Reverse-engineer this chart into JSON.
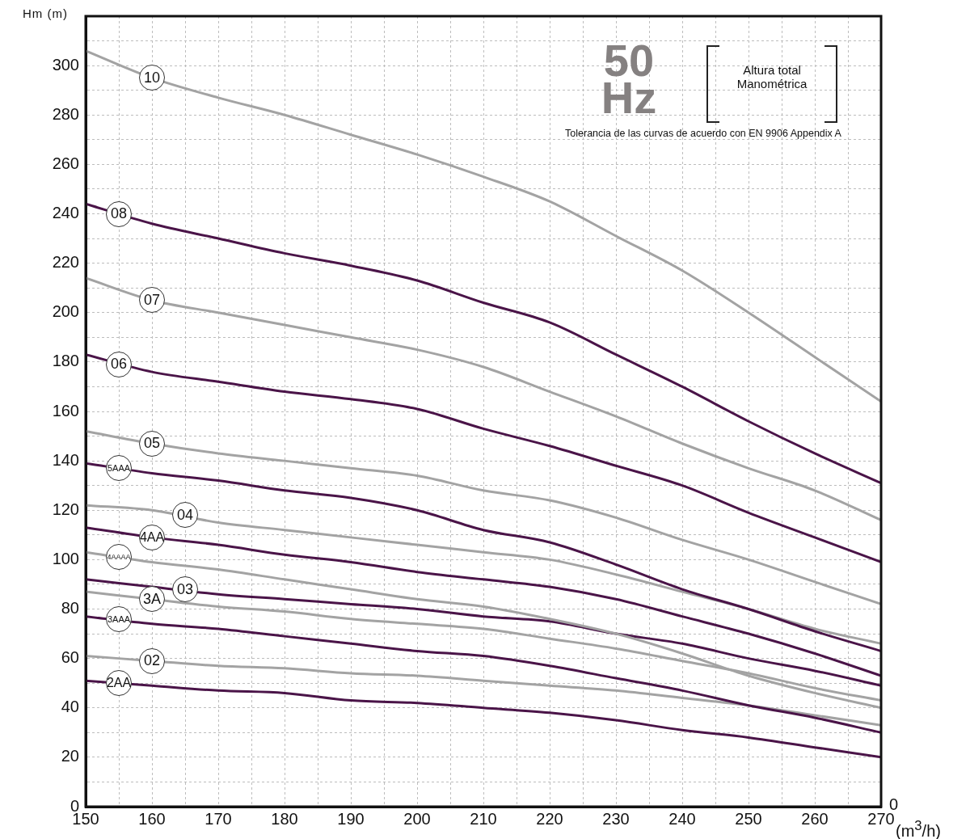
{
  "chart_data": {
    "type": "line",
    "title": "50 Hz",
    "xlabel": "(m$^{3}$/h)",
    "ylabel": "Hm (m)",
    "x": [
      150,
      160,
      170,
      180,
      190,
      200,
      210,
      220,
      230,
      240,
      250,
      260,
      270
    ],
    "xlim": [
      150,
      270
    ],
    "ylim": [
      0,
      320
    ],
    "xticks": [
      150,
      {
        "value": 155,
        "label": null
      },
      160,
      {
        "value": 165,
        "label": null
      },
      170,
      {
        "value": 175,
        "label": null
      },
      180,
      {
        "value": 185,
        "label": null
      },
      190,
      {
        "value": 195,
        "label": null
      },
      200,
      {
        "value": 205,
        "label": null
      },
      210,
      {
        "value": 215,
        "label": null
      },
      220,
      {
        "value": 225,
        "label": null
      },
      230,
      {
        "value": 235,
        "label": null
      },
      240,
      {
        "value": 245,
        "label": null
      },
      250,
      {
        "value": 255,
        "label": null
      },
      260,
      {
        "value": 265,
        "label": null
      },
      270
    ],
    "yticks": [
      0,
      {
        "value": 10,
        "label": null
      },
      20,
      {
        "value": 30,
        "label": null
      },
      40,
      {
        "value": 50,
        "label": null
      },
      60,
      {
        "value": 70,
        "label": null
      },
      80,
      {
        "value": 90,
        "label": null
      },
      100,
      {
        "value": 110,
        "label": null
      },
      120,
      {
        "value": 130,
        "label": null
      },
      140,
      {
        "value": 150,
        "label": null
      },
      160,
      {
        "value": 170,
        "label": null
      },
      180,
      {
        "value": 190,
        "label": null
      },
      200,
      {
        "value": 210,
        "label": null
      },
      220,
      {
        "value": 230,
        "label": null
      },
      240,
      {
        "value": 250,
        "label": null
      },
      260,
      {
        "value": 270,
        "label": null
      },
      280,
      {
        "value": 290,
        "label": null
      },
      300,
      {
        "value": 310,
        "label": null
      },
      {
        "value": 320,
        "label": null
      }
    ],
    "grid": true,
    "legend": false,
    "marker": "none",
    "line_style": "solid",
    "series": [
      {
        "color": "#a3a3a3",
        "values": [
          306,
          295,
          287,
          280,
          272,
          264,
          255,
          245,
          231,
          217,
          200,
          182,
          164
        ]
      },
      {
        "color": "#4a1448",
        "values": [
          244,
          236,
          230,
          224,
          219,
          213,
          204,
          196,
          183,
          170,
          156,
          143,
          131
        ]
      },
      {
        "color": "#a3a3a3",
        "values": [
          214,
          205,
          200,
          195,
          190,
          185,
          178,
          168,
          158,
          147,
          137,
          128,
          116
        ]
      },
      {
        "color": "#4a1448",
        "values": [
          183,
          176,
          172,
          168,
          165,
          161,
          153,
          146,
          138,
          130,
          119,
          109,
          99
        ]
      },
      {
        "color": "#a3a3a3",
        "values": [
          152,
          147,
          143,
          140,
          137,
          134,
          128,
          124,
          117,
          108,
          100,
          91,
          82
        ]
      },
      {
        "color": "#4a1448",
        "values": [
          139,
          135,
          132,
          128,
          125,
          120,
          112,
          107,
          98,
          88,
          80,
          71,
          63
        ]
      },
      {
        "color": "#a3a3a3",
        "values": [
          122,
          120,
          115,
          112,
          109,
          106,
          103,
          100,
          94,
          87,
          80,
          72,
          66
        ]
      },
      {
        "color": "#4a1448",
        "values": [
          113,
          109,
          106,
          102,
          99,
          95,
          92,
          89,
          84,
          77,
          70,
          62,
          53
        ]
      },
      {
        "color": "#a3a3a3",
        "values": [
          103,
          99,
          96,
          92,
          88,
          84,
          81,
          76,
          70,
          62,
          53,
          46,
          40
        ]
      },
      {
        "color": "#4a1448",
        "values": [
          92,
          89,
          86,
          84,
          82,
          80,
          77,
          75,
          70,
          66,
          60,
          55,
          49
        ]
      },
      {
        "color": "#a3a3a3",
        "values": [
          87,
          84,
          81,
          79,
          76,
          74,
          72,
          68,
          64,
          59,
          54,
          48,
          43
        ]
      },
      {
        "color": "#4a1448",
        "values": [
          77,
          74,
          72,
          69,
          66,
          63,
          61,
          57,
          52,
          47,
          41,
          36,
          30
        ]
      },
      {
        "color": "#a3a3a3",
        "values": [
          61,
          59,
          57,
          56,
          54,
          53,
          51,
          49,
          47,
          44,
          41,
          37,
          33
        ]
      },
      {
        "color": "#4a1448",
        "values": [
          51,
          49,
          47,
          46,
          43,
          42,
          40,
          38,
          35,
          31,
          28,
          24,
          20
        ]
      }
    ],
    "annotations": [
      "Altura total Manométrica",
      "Tolerancia de las curvas de acuerdo con EN 9906 Appendix A",
      "0",
      {
        "text": "10",
        "x": 160,
        "y": 295
      },
      {
        "text": "08",
        "x": 155,
        "y": 240
      },
      {
        "text": "07",
        "x": 160,
        "y": 205
      },
      {
        "text": "06",
        "x": 155,
        "y": 179
      },
      {
        "text": "05",
        "x": 160,
        "y": 147
      },
      {
        "text": "5AAA",
        "x": 155,
        "y": 137
      },
      {
        "text": "04",
        "x": 165,
        "y": 118
      },
      {
        "text": "4AA",
        "x": 160,
        "y": 109
      },
      {
        "text": "4AAAA",
        "x": 155,
        "y": 101
      },
      {
        "text": "03",
        "x": 165,
        "y": 88
      },
      {
        "text": "3A",
        "x": 160,
        "y": 84
      },
      {
        "text": "3AAA",
        "x": 155,
        "y": 76
      },
      {
        "text": "02",
        "x": 160,
        "y": 59
      },
      {
        "text": "2AA",
        "x": 155,
        "y": 50
      }
    ]
  }
}
